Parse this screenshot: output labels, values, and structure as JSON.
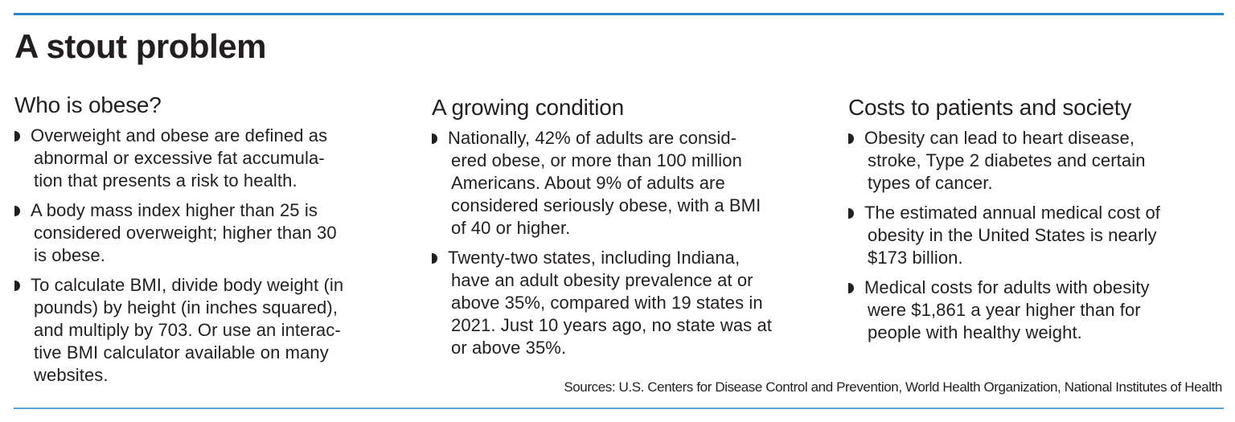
{
  "title": "A stout problem",
  "columns": [
    {
      "heading": "Who is obese?",
      "bullets": [
        [
          "Overweight and obese are defined as",
          "abnormal or excessive fat accumula-",
          "tion that presents a risk to health."
        ],
        [
          "A body mass index higher than 25 is",
          "considered overweight; higher than 30",
          "is obese."
        ],
        [
          "To calculate BMI, divide body weight (in",
          "pounds) by height (in inches squared),",
          "and multiply by 703. Or use an interac-",
          "tive BMI calculator available on many",
          "websites."
        ]
      ]
    },
    {
      "heading": "A growing condition",
      "bullets": [
        [
          "Nationally, 42% of adults are consid-",
          "ered obese, or more than 100 million",
          "Americans. About 9% of adults are",
          "considered seriously obese, with a BMI",
          "of 40 or higher."
        ],
        [
          "Twenty-two states, including Indiana,",
          "have an adult obesity prevalence at or",
          "above 35%, compared with 19 states in",
          "2021. Just 10 years ago, no state was at",
          "or above 35%."
        ]
      ]
    },
    {
      "heading": "Costs to patients and society",
      "bullets": [
        [
          "Obesity can lead to heart disease,",
          "stroke, Type 2 diabetes and certain",
          "types of cancer."
        ],
        [
          "The estimated annual medical cost of",
          "obesity in the United States is nearly",
          "$173 billion."
        ],
        [
          "Medical costs for adults with obesity",
          "were $1,861 a year higher than for",
          "people with healthy weight."
        ]
      ]
    }
  ],
  "sources": "Sources: U.S. Centers for Disease Control and Prevention, World Health Organization, National Institutes of Health",
  "colors": {
    "rule": "#2a86c6",
    "text": "#231f20"
  }
}
